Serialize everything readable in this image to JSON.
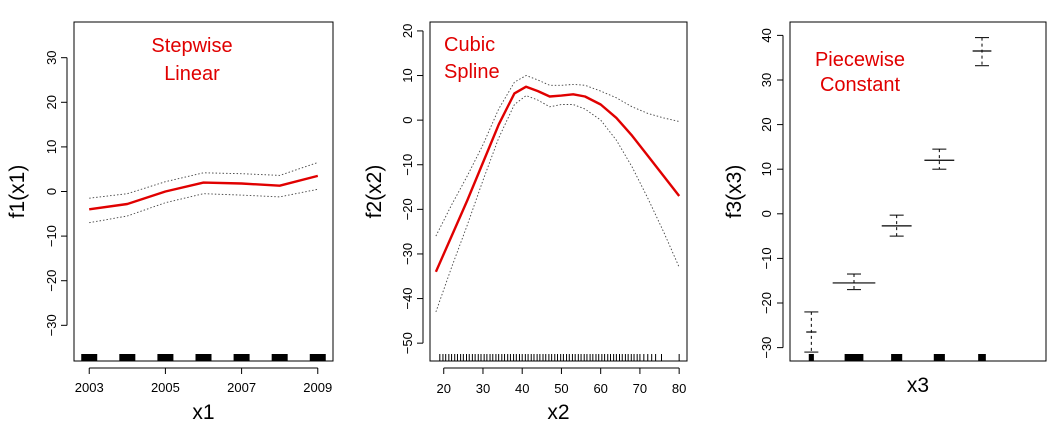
{
  "chart_data": [
    {
      "type": "line",
      "title": "",
      "annotation": [
        "Stepwise",
        "Linear"
      ],
      "xlabel": "x1",
      "ylabel": "f1(x1)",
      "xlim": [
        2002.6,
        2009.4
      ],
      "ylim": [
        -38,
        38
      ],
      "xticks": [
        2003,
        2005,
        2007,
        2009
      ],
      "yticks": [
        -30,
        -20,
        -10,
        0,
        10,
        20,
        30
      ],
      "x": [
        2003,
        2004,
        2005,
        2006,
        2007,
        2008,
        2009
      ],
      "y": [
        -4,
        -2.8,
        0,
        2,
        1.8,
        1.3,
        3.5
      ],
      "lower": [
        -7,
        -5.5,
        -2.5,
        -0.5,
        -0.8,
        -1.2,
        0.5
      ],
      "upper": [
        -1.5,
        -0.5,
        2.2,
        4.2,
        4.0,
        3.6,
        6.5
      ],
      "rug": [
        2003,
        2004,
        2005,
        2006,
        2007,
        2008,
        2009
      ]
    },
    {
      "type": "line",
      "title": "",
      "annotation": [
        "Cubic",
        "Spline"
      ],
      "xlabel": "x2",
      "ylabel": "f2(x2)",
      "xlim": [
        16.5,
        82
      ],
      "ylim": [
        -54,
        22
      ],
      "xticks": [
        20,
        30,
        40,
        50,
        60,
        70,
        80
      ],
      "yticks": [
        -50,
        -40,
        -30,
        -20,
        -10,
        0,
        10,
        20
      ],
      "x": [
        18,
        22,
        26,
        30,
        34,
        38,
        41,
        44,
        47,
        50,
        53,
        56,
        60,
        64,
        68,
        72,
        76,
        80
      ],
      "y": [
        -34,
        -26,
        -18,
        -9.5,
        -1,
        6,
        7.5,
        6.5,
        5.3,
        5.5,
        5.8,
        5.3,
        3.5,
        0.5,
        -3.5,
        -8,
        -12.5,
        -17
      ],
      "lower": [
        -43,
        -33,
        -23.5,
        -13.5,
        -4,
        3.5,
        5.5,
        4.5,
        3,
        3.5,
        3.5,
        2.5,
        0,
        -4.5,
        -10.5,
        -17.5,
        -25,
        -33
      ],
      "upper": [
        -26,
        -19,
        -12.5,
        -5.5,
        2.5,
        8.5,
        10,
        9,
        7.8,
        7.8,
        8,
        7.8,
        6.5,
        5,
        3,
        1.5,
        0.5,
        -0.3
      ],
      "rug": [
        19,
        19.8,
        20.5,
        21.3,
        22,
        22.8,
        23.5,
        24.3,
        25,
        25.8,
        26.5,
        27.3,
        28,
        28.8,
        29.5,
        30.3,
        31,
        31.8,
        32.5,
        33.3,
        34,
        34.8,
        35.5,
        36.3,
        37,
        37.8,
        38.5,
        39.3,
        40,
        40.8,
        41.5,
        42.3,
        43,
        43.8,
        44.5,
        45.3,
        46,
        46.8,
        47.5,
        48.3,
        49,
        49.8,
        50.5,
        51.3,
        52,
        52.8,
        53.5,
        54.3,
        55,
        55.8,
        56.5,
        57.3,
        58,
        58.8,
        59.5,
        60.3,
        61,
        61.8,
        62.5,
        63.3,
        64,
        64.8,
        65.5,
        66.3,
        67,
        67.8,
        68.5,
        69.3,
        70,
        71,
        72,
        73,
        74,
        75.5,
        80
      ]
    },
    {
      "type": "scatter",
      "title": "",
      "annotation": [
        "Piecewise",
        "Constant"
      ],
      "xlabel": "x3",
      "ylabel": "f3(x3)",
      "xlim": [
        0.5,
        6.5
      ],
      "ylim": [
        -33,
        43
      ],
      "xticks": [],
      "yticks": [
        -30,
        -20,
        -10,
        0,
        10,
        20,
        30,
        40
      ],
      "levels": [
        {
          "x": 1.0,
          "y": -26.5,
          "lo": -31,
          "hi": -22,
          "half_width": 0.12
        },
        {
          "x": 2.0,
          "y": -15.5,
          "lo": -17,
          "hi": -13.5,
          "half_width": 0.5
        },
        {
          "x": 3.0,
          "y": -2.7,
          "lo": -5,
          "hi": -0.3,
          "half_width": 0.35
        },
        {
          "x": 4.0,
          "y": 12,
          "lo": 10,
          "hi": 14.5,
          "half_width": 0.35
        },
        {
          "x": 5.0,
          "y": 36.5,
          "lo": 33.2,
          "hi": 39.5,
          "half_width": 0.22
        }
      ],
      "rug_blocks": [
        {
          "x": 1.0,
          "half_width": 0.06
        },
        {
          "x": 2.0,
          "half_width": 0.22
        },
        {
          "x": 3.0,
          "half_width": 0.13
        },
        {
          "x": 4.0,
          "half_width": 0.13
        },
        {
          "x": 5.0,
          "half_width": 0.09
        }
      ]
    }
  ]
}
